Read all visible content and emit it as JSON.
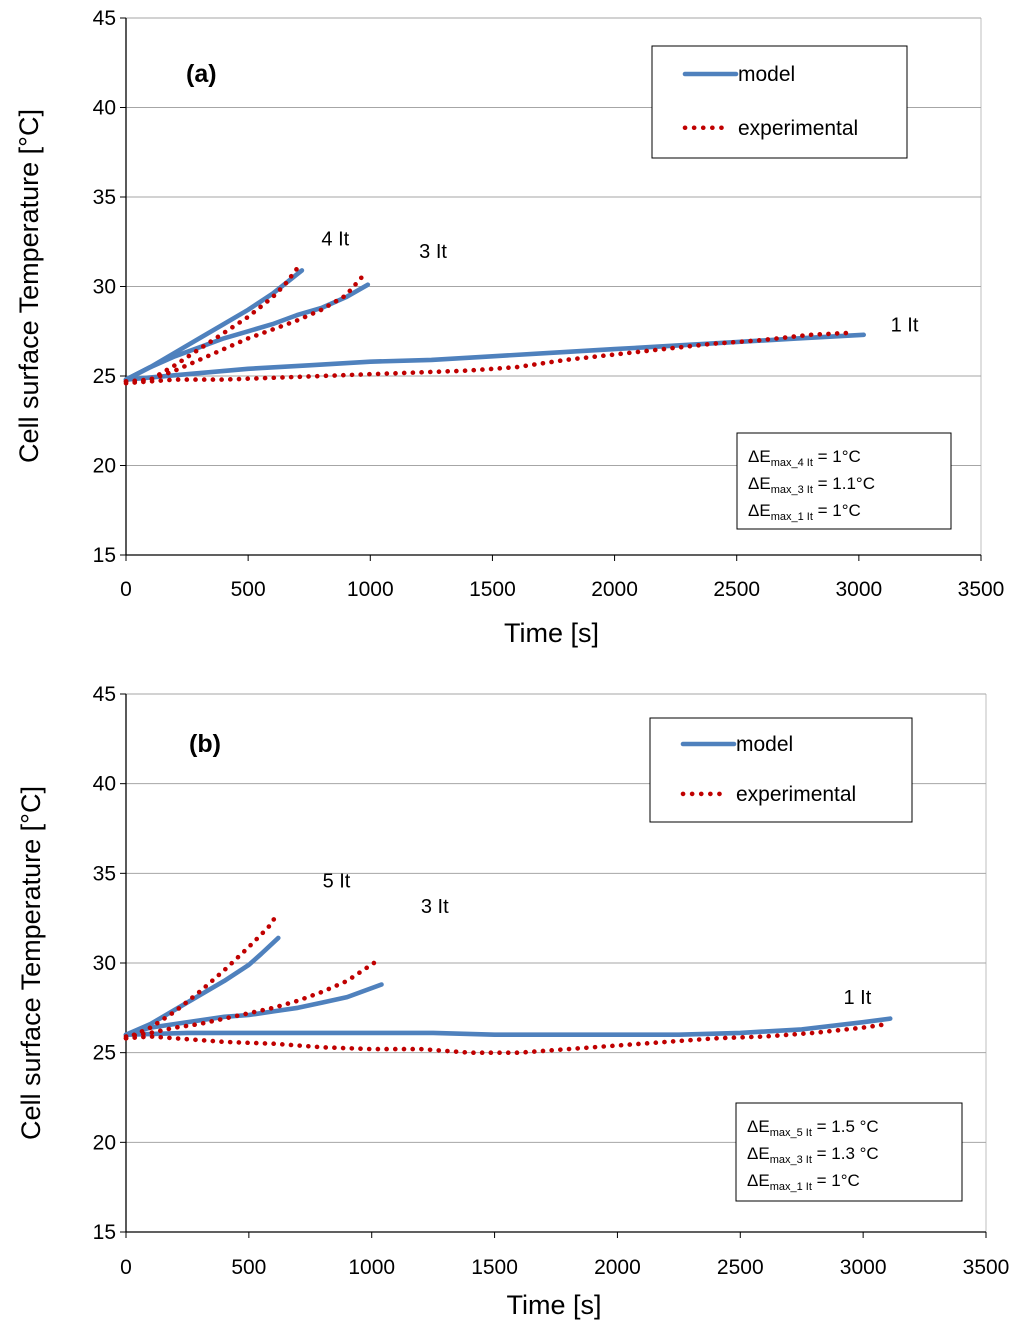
{
  "chart_data": [
    {
      "type": "line",
      "panel_label": "(a)",
      "xlabel": "Time [s]",
      "ylabel": "Cell surface Temperature [°C]",
      "xlim": [
        0,
        3500
      ],
      "ylim": [
        15,
        45
      ],
      "xticks": [
        "0",
        "500",
        "1000",
        "1500",
        "2000",
        "2500",
        "3000",
        "3500"
      ],
      "yticks": [
        "15",
        "20",
        "25",
        "30",
        "35",
        "40",
        "45"
      ],
      "grid": "horizontal",
      "legend": {
        "position": "top-right",
        "model_label": "model",
        "experimental_label": "experimental"
      },
      "error_box": {
        "position": "bottom-right",
        "lines": [
          {
            "prefix": "ΔE",
            "sub": "max_4 It",
            "suffix": " =  1°C"
          },
          {
            "prefix": "ΔE",
            "sub": "max_3 It",
            "suffix": " = 1.1°C"
          },
          {
            "prefix": "ΔE",
            "sub": "max_1 It",
            "suffix": " = 1°C"
          }
        ]
      },
      "series": [
        {
          "name": "model",
          "curve": "4 It",
          "style": "solid",
          "color": "#4F81BD",
          "x": [
            0,
            100,
            200,
            300,
            400,
            500,
            600,
            720
          ],
          "y": [
            24.8,
            25.5,
            26.3,
            27.1,
            27.9,
            28.7,
            29.6,
            30.9
          ]
        },
        {
          "name": "experimental",
          "curve": "4 It",
          "style": "dotted",
          "color": "#C00000",
          "x": [
            0,
            50,
            100,
            200,
            300,
            400,
            500,
            600,
            650,
            700
          ],
          "y": [
            24.7,
            24.7,
            24.8,
            25.6,
            26.5,
            27.4,
            28.3,
            29.4,
            30.1,
            31.0
          ]
        },
        {
          "name": "model",
          "curve": "3 It",
          "style": "solid",
          "color": "#4F81BD",
          "x": [
            0,
            100,
            200,
            300,
            400,
            500,
            600,
            700,
            800,
            900,
            990
          ],
          "y": [
            24.8,
            25.5,
            26.1,
            26.6,
            27.1,
            27.5,
            27.9,
            28.4,
            28.8,
            29.4,
            30.1
          ]
        },
        {
          "name": "experimental",
          "curve": "3 It",
          "style": "dotted",
          "color": "#C00000",
          "x": [
            0,
            100,
            200,
            300,
            400,
            500,
            600,
            700,
            800,
            900,
            970
          ],
          "y": [
            24.7,
            24.8,
            25.3,
            25.9,
            26.5,
            27.1,
            27.6,
            28.1,
            28.7,
            29.5,
            30.6
          ]
        },
        {
          "name": "model",
          "curve": "1 It",
          "style": "solid",
          "color": "#4F81BD",
          "x": [
            0,
            250,
            500,
            750,
            1000,
            1250,
            1500,
            1750,
            2000,
            2250,
            2500,
            2750,
            3020
          ],
          "y": [
            24.8,
            25.1,
            25.4,
            25.6,
            25.8,
            25.9,
            26.1,
            26.3,
            26.5,
            26.7,
            26.9,
            27.1,
            27.3
          ]
        },
        {
          "name": "experimental",
          "curve": "1 It",
          "style": "dotted",
          "color": "#C00000",
          "x": [
            0,
            100,
            200,
            400,
            600,
            800,
            1000,
            1200,
            1400,
            1600,
            1800,
            2000,
            2200,
            2400,
            2600,
            2800,
            2950
          ],
          "y": [
            24.6,
            24.7,
            24.8,
            24.8,
            24.9,
            25.0,
            25.1,
            25.2,
            25.3,
            25.5,
            25.9,
            26.2,
            26.5,
            26.8,
            27.0,
            27.3,
            27.4
          ]
        }
      ],
      "curve_labels": [
        {
          "text": "4 It",
          "x": 800,
          "y": 32.3
        },
        {
          "text": "3 It",
          "x": 1200,
          "y": 31.6
        },
        {
          "text": "1 It",
          "x": 3130,
          "y": 27.5
        }
      ]
    },
    {
      "type": "line",
      "panel_label": "(b)",
      "xlabel": "Time [s]",
      "ylabel": "Cell surface Temperature [°C]",
      "xlim": [
        0,
        3500
      ],
      "ylim": [
        15,
        45
      ],
      "xticks": [
        "0",
        "500",
        "1000",
        "1500",
        "2000",
        "2500",
        "3000",
        "3500"
      ],
      "yticks": [
        "15",
        "20",
        "25",
        "30",
        "35",
        "40",
        "45"
      ],
      "grid": "horizontal",
      "legend": {
        "position": "top-right",
        "model_label": "model",
        "experimental_label": "experimental"
      },
      "error_box": {
        "position": "bottom-right",
        "lines": [
          {
            "prefix": "ΔE",
            "sub": "max_5 It",
            "suffix": " = 1.5 °C"
          },
          {
            "prefix": "ΔE",
            "sub": "max_3 It",
            "suffix": " = 1.3 °C"
          },
          {
            "prefix": "ΔE",
            "sub": "max_1 It",
            "suffix": " = 1°C"
          }
        ]
      },
      "series": [
        {
          "name": "model",
          "curve": "5 It",
          "style": "solid",
          "color": "#4F81BD",
          "x": [
            0,
            100,
            200,
            300,
            400,
            500,
            550,
            620
          ],
          "y": [
            26.0,
            26.6,
            27.4,
            28.2,
            29.0,
            29.9,
            30.5,
            31.4
          ]
        },
        {
          "name": "experimental",
          "curve": "5 It",
          "style": "dotted",
          "color": "#C00000",
          "x": [
            0,
            100,
            200,
            300,
            400,
            500,
            580,
            620
          ],
          "y": [
            25.8,
            26.4,
            27.3,
            28.4,
            29.6,
            30.9,
            32.0,
            32.8
          ]
        },
        {
          "name": "model",
          "curve": "3 It",
          "style": "solid",
          "color": "#4F81BD",
          "x": [
            0,
            100,
            200,
            300,
            400,
            500,
            600,
            700,
            800,
            900,
            1040
          ],
          "y": [
            26.0,
            26.4,
            26.6,
            26.8,
            27.0,
            27.1,
            27.3,
            27.5,
            27.8,
            28.1,
            28.8
          ]
        },
        {
          "name": "experimental",
          "curve": "3 It",
          "style": "dotted",
          "color": "#C00000",
          "x": [
            0,
            100,
            200,
            300,
            400,
            500,
            600,
            700,
            800,
            900,
            1020
          ],
          "y": [
            25.9,
            26.1,
            26.4,
            26.6,
            26.9,
            27.2,
            27.5,
            27.9,
            28.4,
            29.0,
            30.1
          ]
        },
        {
          "name": "model",
          "curve": "1 It",
          "style": "solid",
          "color": "#4F81BD",
          "x": [
            0,
            250,
            500,
            750,
            1000,
            1250,
            1500,
            1750,
            2000,
            2250,
            2500,
            2750,
            3000,
            3110
          ],
          "y": [
            26.0,
            26.1,
            26.1,
            26.1,
            26.1,
            26.1,
            26.0,
            26.0,
            26.0,
            26.0,
            26.1,
            26.3,
            26.7,
            26.9
          ]
        },
        {
          "name": "experimental",
          "curve": "1 It",
          "style": "dotted",
          "color": "#C00000",
          "x": [
            0,
            100,
            200,
            400,
            600,
            800,
            1000,
            1200,
            1400,
            1600,
            1800,
            2000,
            2200,
            2400,
            2600,
            2800,
            3000,
            3100
          ],
          "y": [
            25.8,
            25.9,
            25.8,
            25.6,
            25.5,
            25.3,
            25.2,
            25.2,
            25.0,
            25.0,
            25.2,
            25.4,
            25.6,
            25.8,
            25.9,
            26.1,
            26.4,
            26.6
          ]
        }
      ],
      "curve_labels": [
        {
          "text": "5 It",
          "x": 800,
          "y": 34.2
        },
        {
          "text": "3 It",
          "x": 1200,
          "y": 32.8
        },
        {
          "text": "1 It",
          "x": 2920,
          "y": 27.7
        }
      ]
    }
  ]
}
